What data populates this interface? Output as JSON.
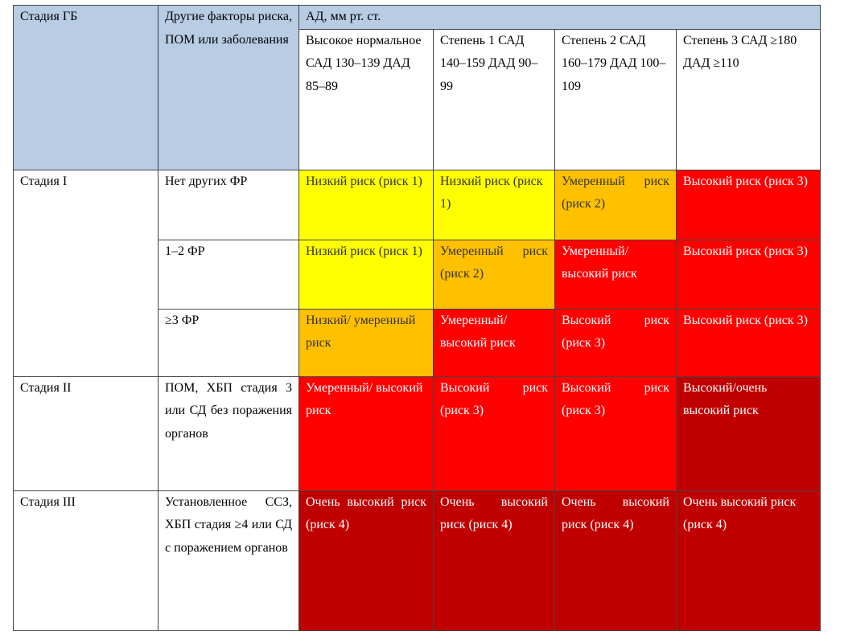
{
  "header": {
    "stage_col": "Стадия ГБ",
    "factors_col": "Другие факторы риска, ПОМ или заболевания",
    "bp_title": "АД, мм рт. ст.",
    "bp_columns": [
      {
        "text": "Высокое нормальное САД 130–139 ДАД 85–89"
      },
      {
        "text": "Степень 1 САД 140–159 ДАД 90–99"
      },
      {
        "text": "Степень 2 САД 160–179 ДАД 100–109"
      },
      {
        "text": "Степень 3 САД ≥180 ДАД ≥110"
      }
    ]
  },
  "rows": [
    {
      "stage": "Стадия I",
      "factor": "Нет других ФР",
      "cells": [
        "Низкий риск (риск 1)",
        "Низкий риск (риск 1)",
        "Умеренный риск (риск 2)",
        "Высокий риск (риск 3)"
      ],
      "colors": [
        "yellow",
        "yellow",
        "orange",
        "red"
      ]
    },
    {
      "stage": "",
      "factor": "1–2 ФР",
      "cells": [
        "Низкий риск (риск 1)",
        "Умеренный риск (риск 2)",
        "Умеренный/ высокий риск",
        "Высокий риск (риск 3)"
      ],
      "colors": [
        "yellow",
        "orange",
        "red",
        "red"
      ]
    },
    {
      "stage": "",
      "factor": "≥3 ФР",
      "cells": [
        "Низкий/ умеренный риск",
        "Умеренный/ высокий риск",
        "Высокий риск (риск 3)",
        "Высокий риск (риск 3)"
      ],
      "colors": [
        "orange",
        "red",
        "red",
        "red"
      ]
    },
    {
      "stage": "Стадия II",
      "factor": "ПОМ, ХБП стадия 3 или СД без поражения органов",
      "cells": [
        "Умеренный/ высокий риск",
        "Высокий риск (риск 3)",
        "Высокий риск (риск 3)",
        "Высокий/очень высокий риск"
      ],
      "colors": [
        "red",
        "red",
        "red",
        "dark"
      ]
    },
    {
      "stage": "Стадия III",
      "factor": "Установленное ССЗ, ХБП стадия ≥4 или СД с поражением органов",
      "cells": [
        "Очень высокий риск (риск 4)",
        "Очень высокий риск (риск 4)",
        "Очень высокий риск (риск 4)",
        "Очень высокий риск (риск 4)"
      ],
      "colors": [
        "dark",
        "dark",
        "dark",
        "dark"
      ]
    }
  ],
  "palette": {
    "header_bg": "#b8cce4",
    "yellow": "#ffff00",
    "orange": "#ffc000",
    "red": "#ff0000",
    "dark": "#c00000"
  }
}
